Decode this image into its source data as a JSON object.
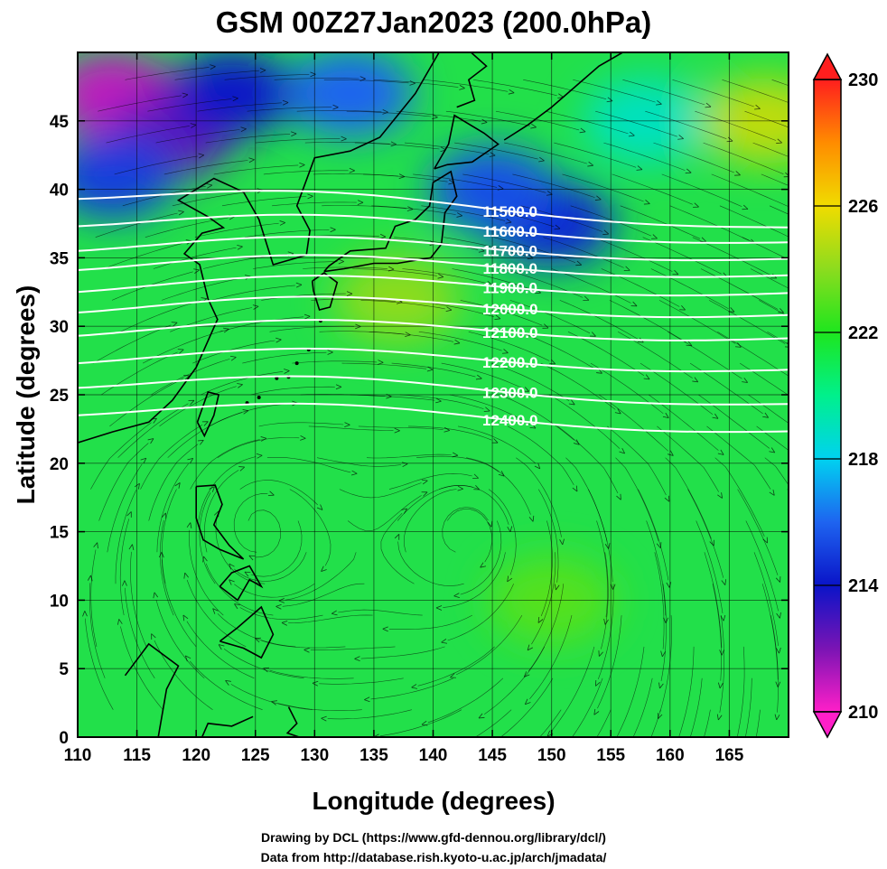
{
  "title": "GSM 00Z27Jan2023 (200.0hPa)",
  "xlabel": "Longitude (degrees)",
  "ylabel": "Latitude  (degrees)",
  "credits": [
    "Drawing by DCL (https://www.gfd-dennou.org/library/dcl/)",
    "Data from http://database.rish.kyoto-u.ac.jp/arch/jmadata/"
  ],
  "colors": {
    "land_outline": "#000000",
    "contour": "#ffffff",
    "streamline": "#000000"
  },
  "chart_data": {
    "type": "heatmap",
    "description_fields": "shaded temperature (K) with geopotential height contours (m) and wind streamlines",
    "xlim": [
      110,
      170
    ],
    "ylim": [
      0,
      50
    ],
    "xticks": [
      110,
      115,
      120,
      125,
      130,
      135,
      140,
      145,
      150,
      155,
      160,
      165
    ],
    "yticks": [
      0,
      5,
      10,
      15,
      20,
      25,
      30,
      35,
      40,
      45
    ],
    "colorbar": {
      "range": [
        210,
        230
      ],
      "ticks": [
        210,
        214,
        218,
        222,
        226,
        230
      ],
      "colors": [
        "#ff1fc8",
        "#7a14b4",
        "#0a14c8",
        "#1e64f0",
        "#00d2f0",
        "#00f08c",
        "#1ee61e",
        "#8cdc1e",
        "#f0dc00",
        "#ff8c00",
        "#ff1e1e"
      ]
    },
    "field_regions": [
      {
        "lon": 113,
        "lat": 47,
        "value": 211
      },
      {
        "lon": 118,
        "lat": 44,
        "value": 212.5
      },
      {
        "lon": 123,
        "lat": 47,
        "value": 214
      },
      {
        "lon": 113,
        "lat": 41,
        "value": 215
      },
      {
        "lon": 133,
        "lat": 47,
        "value": 216
      },
      {
        "lon": 150,
        "lat": 37.5,
        "value": 214.5
      },
      {
        "lon": 145,
        "lat": 40,
        "value": 215.5
      },
      {
        "lon": 158,
        "lat": 45,
        "value": 219
      },
      {
        "lon": 168,
        "lat": 45,
        "value": 225
      },
      {
        "lon": 137,
        "lat": 32,
        "value": 224
      },
      {
        "lon": 150,
        "lat": 10,
        "value": 223
      }
    ],
    "contours": [
      {
        "label": "11500.0",
        "value": 11500,
        "lat_west": 40.0,
        "lat_east": 37.4
      },
      {
        "label": "11600.0",
        "value": 11600,
        "lat_west": 38.0,
        "lat_east": 36.3
      },
      {
        "label": "11700.0",
        "value": 11700,
        "lat_west": 36.2,
        "lat_east": 35.1
      },
      {
        "label": "11800.0",
        "value": 11800,
        "lat_west": 34.8,
        "lat_east": 33.9
      },
      {
        "label": "11900.0",
        "value": 11900,
        "lat_west": 33.2,
        "lat_east": 32.6
      },
      {
        "label": "12000.0",
        "value": 12000,
        "lat_west": 31.7,
        "lat_east": 31.0
      },
      {
        "label": "12100.0",
        "value": 12100,
        "lat_west": 30.0,
        "lat_east": 29.3
      },
      {
        "label": "12200.0",
        "value": 12200,
        "lat_west": 28.0,
        "lat_east": 27.0
      },
      {
        "label": "12300.0",
        "value": 12300,
        "lat_west": 26.2,
        "lat_east": 24.5
      },
      {
        "label": "12400.0",
        "value": 12400,
        "lat_west": 24.2,
        "lat_east": 22.5
      }
    ],
    "vortices": [
      {
        "lon": 125,
        "lat": 15.5,
        "sense": "anticyclonic"
      },
      {
        "lon": 143,
        "lat": 15,
        "sense": "anticyclonic"
      }
    ],
    "grid": true,
    "legend": "colorbar-right"
  }
}
